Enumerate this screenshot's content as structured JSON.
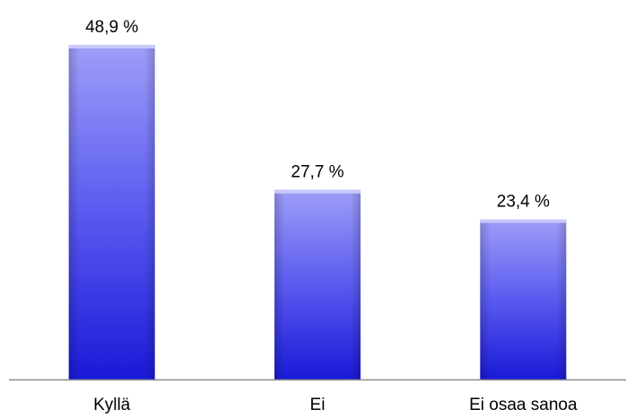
{
  "chart_data": {
    "type": "bar",
    "title": "",
    "xlabel": "",
    "ylabel": "",
    "categories": [
      "Kyllä",
      "Ei",
      "Ei osaa sanoa"
    ],
    "values": [
      48.9,
      27.7,
      23.4
    ],
    "value_labels": [
      "48,9 %",
      "27,7 %",
      "23,4 %"
    ],
    "ylim": [
      0,
      55
    ],
    "grid": false,
    "legend": "none",
    "colors": {
      "bar_top": "#9e9ef8",
      "bar_mid": "#5a5af0",
      "bar_bottom": "#1a1ad8",
      "axis": "#8c8c8c"
    }
  }
}
